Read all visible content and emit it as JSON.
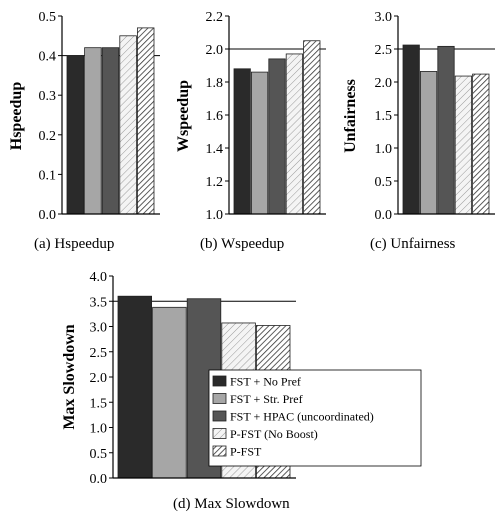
{
  "series_names": [
    "FST + No Pref",
    "FST + Str. Pref",
    "FST + HPAC (uncoordinated)",
    "P-FST (No Boost)",
    "P-FST"
  ],
  "series_styles": [
    {
      "fill": "#2a2a2a",
      "pattern": "none"
    },
    {
      "fill": "#a6a6a6",
      "pattern": "none"
    },
    {
      "fill": "#555555",
      "pattern": "none"
    },
    {
      "fill": "#f2f2f2",
      "pattern": "light-diagonal"
    },
    {
      "fill": "#ffffff",
      "pattern": "dense-diagonal"
    }
  ],
  "chart_data": [
    {
      "type": "bar",
      "caption": "(a)  Hspeedup",
      "ylabel": "Hspeedup",
      "ylim": [
        0.0,
        0.5
      ],
      "yticks": [
        "0.0",
        "0.1",
        "0.2",
        "0.3",
        "0.4",
        "0.5"
      ],
      "reference_line": 0.4,
      "legend": false,
      "series": [
        {
          "name": "FST + No Pref",
          "values": [
            0.4
          ]
        },
        {
          "name": "FST + Str. Pref",
          "values": [
            0.42
          ]
        },
        {
          "name": "FST + HPAC (uncoordinated)",
          "values": [
            0.42
          ]
        },
        {
          "name": "P-FST (No Boost)",
          "values": [
            0.45
          ]
        },
        {
          "name": "P-FST",
          "values": [
            0.47
          ]
        }
      ]
    },
    {
      "type": "bar",
      "caption": "(b)  Wspeedup",
      "ylabel": "Wspeedup",
      "ylim": [
        1.0,
        2.2
      ],
      "yticks": [
        "1.0",
        "1.2",
        "1.4",
        "1.6",
        "1.8",
        "2.0",
        "2.2"
      ],
      "reference_line": 2.0,
      "legend": false,
      "series": [
        {
          "name": "FST + No Pref",
          "values": [
            1.88
          ]
        },
        {
          "name": "FST + Str. Pref",
          "values": [
            1.86
          ]
        },
        {
          "name": "FST + HPAC (uncoordinated)",
          "values": [
            1.94
          ]
        },
        {
          "name": "P-FST (No Boost)",
          "values": [
            1.97
          ]
        },
        {
          "name": "P-FST",
          "values": [
            2.05
          ]
        }
      ]
    },
    {
      "type": "bar",
      "caption": "(c)  Unfairness",
      "ylabel": "Unfairness",
      "ylim": [
        0.0,
        3.0
      ],
      "yticks": [
        "0.0",
        "0.5",
        "1.0",
        "1.5",
        "2.0",
        "2.5",
        "3.0"
      ],
      "reference_line": 2.5,
      "legend": false,
      "series": [
        {
          "name": "FST + No Pref",
          "values": [
            2.56
          ]
        },
        {
          "name": "FST + Str. Pref",
          "values": [
            2.16
          ]
        },
        {
          "name": "FST + HPAC (uncoordinated)",
          "values": [
            2.54
          ]
        },
        {
          "name": "P-FST (No Boost)",
          "values": [
            2.09
          ]
        },
        {
          "name": "P-FST",
          "values": [
            2.12
          ]
        }
      ]
    },
    {
      "type": "bar",
      "caption": "(d)  Max Slowdown",
      "ylabel": "Max Slowdown",
      "ylim": [
        0.0,
        4.0
      ],
      "yticks": [
        "0.0",
        "0.5",
        "1.0",
        "1.5",
        "2.0",
        "2.5",
        "3.0",
        "3.5",
        "4.0"
      ],
      "reference_line": 3.5,
      "legend": true,
      "legend_position": "lower-right",
      "series": [
        {
          "name": "FST + No Pref",
          "values": [
            3.6
          ]
        },
        {
          "name": "FST + Str. Pref",
          "values": [
            3.38
          ]
        },
        {
          "name": "FST + HPAC (uncoordinated)",
          "values": [
            3.55
          ]
        },
        {
          "name": "P-FST (No Boost)",
          "values": [
            3.07
          ]
        },
        {
          "name": "P-FST",
          "values": [
            3.02
          ]
        }
      ]
    }
  ]
}
